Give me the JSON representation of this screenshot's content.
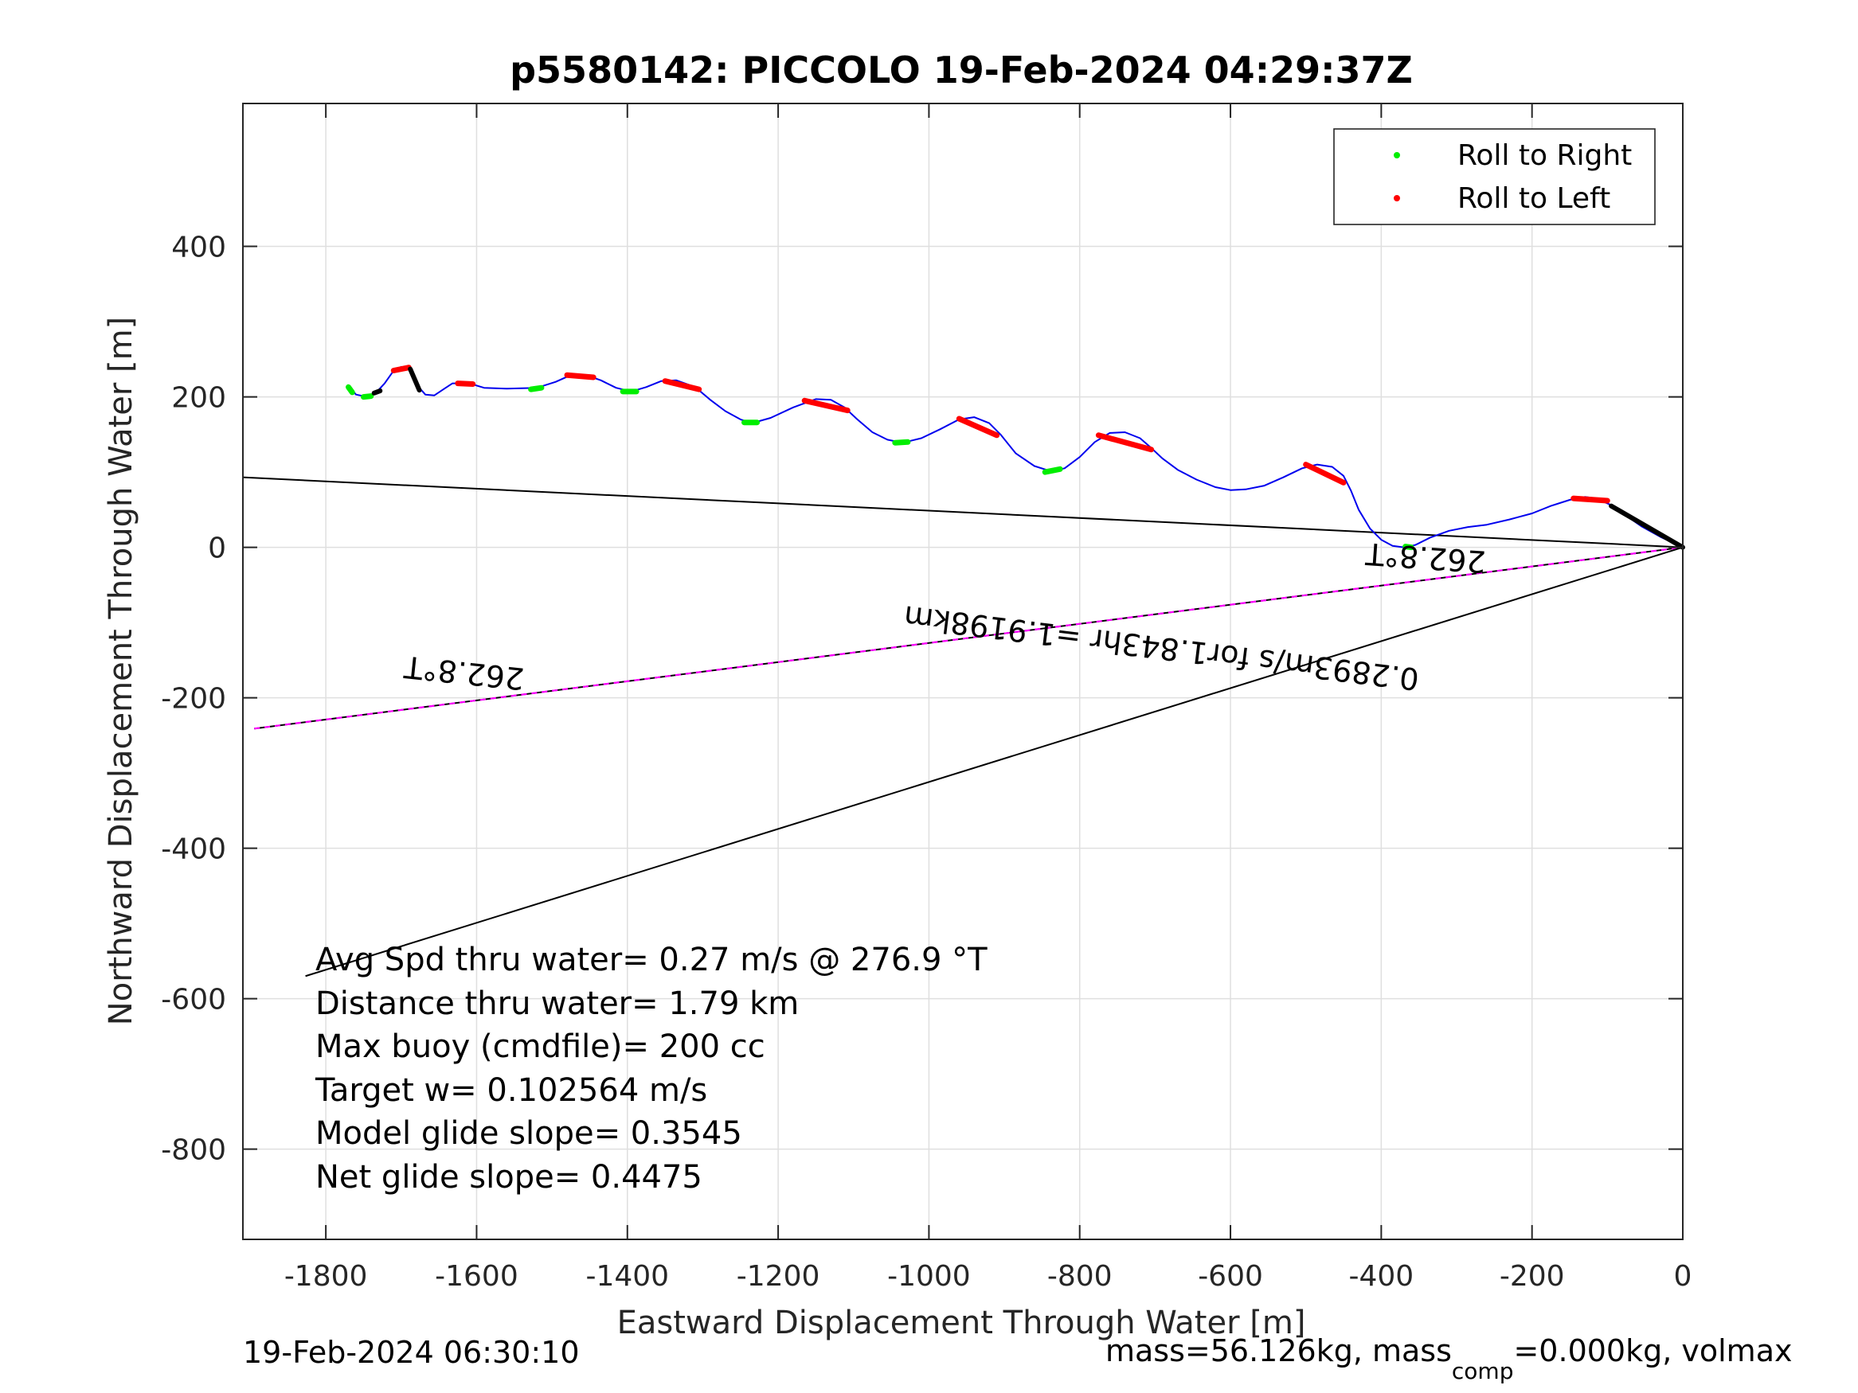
{
  "chart_data": {
    "type": "line",
    "title": "p5580142: PICCOLO 19-Feb-2024 04:29:37Z",
    "xlabel": "Eastward Displacement Through Water [m]",
    "ylabel": "Northward Displacement Through Water [m]",
    "xlim": [
      -1910,
      0
    ],
    "ylim": [
      -920,
      590
    ],
    "xticks": [
      -1800,
      -1600,
      -1400,
      -1200,
      -1000,
      -800,
      -600,
      -400,
      -200,
      0
    ],
    "yticks": [
      400,
      200,
      0,
      -200,
      -400,
      -600,
      -800
    ],
    "grid": true,
    "legend": {
      "placement": "top-right",
      "entries": [
        {
          "label": "Roll to Right",
          "color": "#00ee00"
        },
        {
          "label": "Roll to Left",
          "color": "#ff0000"
        }
      ]
    },
    "track": {
      "color": "#0000ee",
      "points": [
        [
          -1770,
          215
        ],
        [
          -1760,
          203
        ],
        [
          -1745,
          200
        ],
        [
          -1732,
          207
        ],
        [
          -1722,
          218
        ],
        [
          -1712,
          232
        ],
        [
          -1700,
          240
        ],
        [
          -1690,
          238
        ],
        [
          -1683,
          228
        ],
        [
          -1676,
          212
        ],
        [
          -1668,
          203
        ],
        [
          -1656,
          202
        ],
        [
          -1644,
          210
        ],
        [
          -1632,
          218
        ],
        [
          -1610,
          218
        ],
        [
          -1590,
          212
        ],
        [
          -1560,
          211
        ],
        [
          -1520,
          212
        ],
        [
          -1495,
          220
        ],
        [
          -1475,
          229
        ],
        [
          -1455,
          229
        ],
        [
          -1435,
          222
        ],
        [
          -1415,
          212
        ],
        [
          -1395,
          207
        ],
        [
          -1375,
          213
        ],
        [
          -1355,
          221
        ],
        [
          -1335,
          222
        ],
        [
          -1310,
          213
        ],
        [
          -1290,
          196
        ],
        [
          -1270,
          181
        ],
        [
          -1250,
          170
        ],
        [
          -1235,
          165
        ],
        [
          -1210,
          172
        ],
        [
          -1180,
          186
        ],
        [
          -1150,
          197
        ],
        [
          -1130,
          196
        ],
        [
          -1112,
          186
        ],
        [
          -1095,
          170
        ],
        [
          -1075,
          153
        ],
        [
          -1055,
          143
        ],
        [
          -1035,
          139
        ],
        [
          -1010,
          145
        ],
        [
          -985,
          157
        ],
        [
          -960,
          170
        ],
        [
          -940,
          173
        ],
        [
          -920,
          165
        ],
        [
          -905,
          150
        ],
        [
          -885,
          125
        ],
        [
          -860,
          108
        ],
        [
          -838,
          101
        ],
        [
          -820,
          105
        ],
        [
          -800,
          120
        ],
        [
          -780,
          140
        ],
        [
          -760,
          152
        ],
        [
          -740,
          153
        ],
        [
          -720,
          145
        ],
        [
          -705,
          132
        ],
        [
          -690,
          118
        ],
        [
          -670,
          103
        ],
        [
          -645,
          90
        ],
        [
          -620,
          80
        ],
        [
          -600,
          76
        ],
        [
          -580,
          77
        ],
        [
          -555,
          82
        ],
        [
          -530,
          93
        ],
        [
          -505,
          105
        ],
        [
          -485,
          110
        ],
        [
          -465,
          107
        ],
        [
          -450,
          95
        ],
        [
          -440,
          75
        ],
        [
          -430,
          50
        ],
        [
          -415,
          25
        ],
        [
          -400,
          10
        ],
        [
          -385,
          2
        ],
        [
          -370,
          0
        ],
        [
          -355,
          3
        ],
        [
          -335,
          13
        ],
        [
          -310,
          22
        ],
        [
          -285,
          27
        ],
        [
          -260,
          30
        ],
        [
          -230,
          37
        ],
        [
          -200,
          45
        ],
        [
          -175,
          55
        ],
        [
          -150,
          63
        ],
        [
          -130,
          67
        ],
        [
          -115,
          65
        ],
        [
          -95,
          56
        ],
        [
          -75,
          42
        ],
        [
          -55,
          28
        ],
        [
          -30,
          14
        ],
        [
          0,
          0
        ]
      ]
    },
    "roll_to_right_segments": [
      [
        [
          -1770,
          213
        ],
        [
          -1765,
          206
        ]
      ],
      [
        [
          -1750,
          200
        ],
        [
          -1740,
          201
        ]
      ],
      [
        [
          -1528,
          210
        ],
        [
          -1514,
          212
        ]
      ],
      [
        [
          -1406,
          207
        ],
        [
          -1388,
          207
        ]
      ],
      [
        [
          -1245,
          166
        ],
        [
          -1228,
          166
        ]
      ],
      [
        [
          -1045,
          139
        ],
        [
          -1028,
          140
        ]
      ],
      [
        [
          -846,
          100
        ],
        [
          -826,
          104
        ]
      ],
      [
        [
          -368,
          1
        ],
        [
          -360,
          0
        ]
      ]
    ],
    "roll_to_left_segments": [
      [
        [
          -1710,
          235
        ],
        [
          -1690,
          239
        ]
      ],
      [
        [
          -1625,
          218
        ],
        [
          -1605,
          217
        ]
      ],
      [
        [
          -1480,
          229
        ],
        [
          -1445,
          226
        ]
      ],
      [
        [
          -1350,
          221
        ],
        [
          -1305,
          210
        ]
      ],
      [
        [
          -1165,
          195
        ],
        [
          -1108,
          182
        ]
      ],
      [
        [
          -960,
          171
        ],
        [
          -910,
          149
        ]
      ],
      [
        [
          -775,
          149
        ],
        [
          -705,
          130
        ]
      ],
      [
        [
          -500,
          110
        ],
        [
          -450,
          86
        ]
      ],
      [
        [
          -145,
          65
        ],
        [
          -100,
          62
        ]
      ]
    ],
    "thick_black_segments": [
      [
        [
          -1688,
          237
        ],
        [
          -1676,
          209
        ]
      ],
      [
        [
          -1736,
          205
        ],
        [
          -1728,
          208
        ]
      ],
      [
        [
          -95,
          55
        ],
        [
          0,
          0
        ]
      ]
    ],
    "reference_lines": [
      {
        "from": [
          -1910,
          93
        ],
        "to": [
          0,
          0
        ],
        "color": "#000000"
      },
      {
        "from": [
          -1895,
          -241
        ],
        "to": [
          0,
          0
        ],
        "color": "#000000"
      },
      {
        "from": [
          -1895,
          -241
        ],
        "to": [
          0,
          0
        ],
        "color": "#ff00ff",
        "dashed": true
      },
      {
        "from": [
          -1827,
          -570
        ],
        "to": [
          0,
          0
        ],
        "color": "#000000"
      }
    ],
    "line_labels": [
      {
        "text": "262.8°T",
        "at": [
          -340,
          0
        ],
        "rotation": 184,
        "anchor": "middle"
      },
      {
        "text": "262.8°T",
        "at": [
          -1615,
          -153
        ],
        "rotation": 186,
        "anchor": "middle"
      },
      {
        "text": "0.2893m/s for1.843hr =1.9198km",
        "at": [
          -690,
          -120
        ],
        "rotation": 187,
        "anchor": "middle"
      }
    ],
    "annotations": [
      "Avg Spd thru water=  0.27 m/s @ 276.9 °T",
      "Distance thru water=  1.79 km",
      "Max buoy (cmdfile)= 200 cc",
      "Target w= 0.102564 m/s",
      "Model glide slope= 0.3545",
      "Net glide slope= 0.4475"
    ]
  },
  "footer": {
    "timestamp": "19-Feb-2024 06:30:10",
    "mass_prefix": "mass=56.126kg, mass",
    "mass_sub": "comp",
    "mass_suffix": "=0.000kg, volmax"
  }
}
